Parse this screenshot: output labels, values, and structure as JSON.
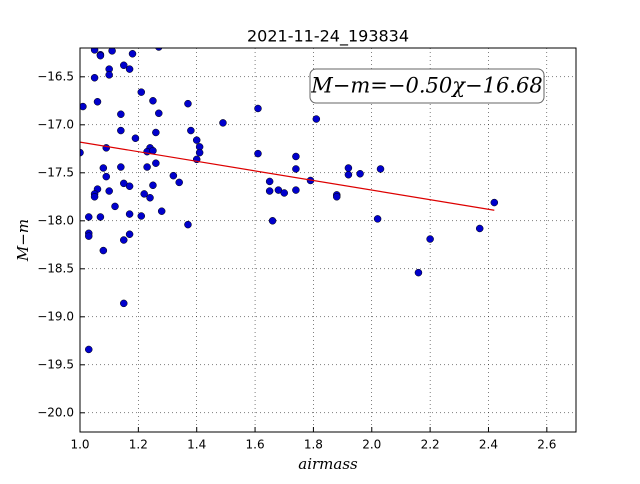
{
  "chart_data": {
    "type": "scatter",
    "title": "2021-11-24_193834",
    "x_label": "airmass",
    "y_label": "M−m",
    "annotation": "M−m=−0.50χ−16.68",
    "xlim": [
      1.0,
      2.7
    ],
    "ylim": [
      -20.2,
      -16.2
    ],
    "y_inverted": true,
    "grid": true,
    "xticks": [
      {
        "value": 1.0,
        "label": "1.0"
      },
      {
        "value": 1.2,
        "label": "1.2"
      },
      {
        "value": 1.4,
        "label": "1.4"
      },
      {
        "value": 1.6,
        "label": "1.6"
      },
      {
        "value": 1.8,
        "label": "1.8"
      },
      {
        "value": 2.0,
        "label": "2.0"
      },
      {
        "value": 2.2,
        "label": "2.2"
      },
      {
        "value": 2.4,
        "label": "2.4"
      },
      {
        "value": 2.6,
        "label": "2.6"
      }
    ],
    "yticks": [
      {
        "value": -16.5,
        "label": "−16.5"
      },
      {
        "value": -17.0,
        "label": "−17.0"
      },
      {
        "value": -17.5,
        "label": "−17.5"
      },
      {
        "value": -18.0,
        "label": "−18.0"
      },
      {
        "value": -18.5,
        "label": "−18.5"
      },
      {
        "value": -19.0,
        "label": "−19.0"
      },
      {
        "value": -19.5,
        "label": "−19.5"
      },
      {
        "value": -20.0,
        "label": "−20.0"
      }
    ],
    "color": "#0000cc",
    "x": [
      1.05,
      1.07,
      1.07,
      1.11,
      1.18,
      1.27,
      1.05,
      1.15,
      1.17,
      1.1,
      1.1,
      1.01,
      1.06,
      1.21,
      1.25,
      1.14,
      1.27,
      1.37,
      1.61,
      1.49,
      1.81,
      1.14,
      1.26,
      1.38,
      1.19,
      1.4,
      1.41,
      1.41,
      1.0,
      1.09,
      1.24,
      1.23,
      1.25,
      1.61,
      1.74,
      1.4,
      1.26,
      1.23,
      1.14,
      1.08,
      1.74,
      1.92,
      1.92,
      1.96,
      2.03,
      1.32,
      1.09,
      1.34,
      1.15,
      1.17,
      1.25,
      1.65,
      1.79,
      1.06,
      1.1,
      1.65,
      1.68,
      1.7,
      1.74,
      1.05,
      1.05,
      1.22,
      1.24,
      1.88,
      1.88,
      1.12,
      1.28,
      1.03,
      1.07,
      1.17,
      1.21,
      1.66,
      2.02,
      1.37,
      2.42,
      2.37,
      1.03,
      1.03,
      1.17,
      1.15,
      2.2,
      1.08,
      2.16,
      1.15,
      1.03
    ],
    "values": [
      -16.22,
      -16.27,
      -16.28,
      -16.23,
      -16.26,
      -16.19,
      -16.51,
      -16.38,
      -16.42,
      -16.42,
      -16.48,
      -16.81,
      -16.76,
      -16.66,
      -16.75,
      -16.89,
      -16.88,
      -16.78,
      -16.83,
      -16.98,
      -16.94,
      -17.06,
      -17.08,
      -17.06,
      -17.14,
      -17.16,
      -17.23,
      -17.29,
      -17.29,
      -17.24,
      -17.24,
      -17.28,
      -17.27,
      -17.3,
      -17.33,
      -17.36,
      -17.4,
      -17.44,
      -17.44,
      -17.45,
      -17.46,
      -17.45,
      -17.52,
      -17.51,
      -17.46,
      -17.53,
      -17.54,
      -17.6,
      -17.61,
      -17.64,
      -17.63,
      -17.59,
      -17.58,
      -17.67,
      -17.69,
      -17.69,
      -17.68,
      -17.71,
      -17.68,
      -17.72,
      -17.75,
      -17.72,
      -17.76,
      -17.73,
      -17.75,
      -17.85,
      -17.9,
      -17.96,
      -17.96,
      -17.93,
      -17.95,
      -18.0,
      -17.98,
      -18.04,
      -17.81,
      -18.08,
      -18.13,
      -18.16,
      -18.14,
      -18.2,
      -18.19,
      -18.31,
      -18.54,
      -18.86,
      -19.34
    ],
    "fit": {
      "color": "#dd0000",
      "x": [
        1.0,
        2.42
      ],
      "values": [
        -17.18,
        -17.89
      ]
    }
  }
}
